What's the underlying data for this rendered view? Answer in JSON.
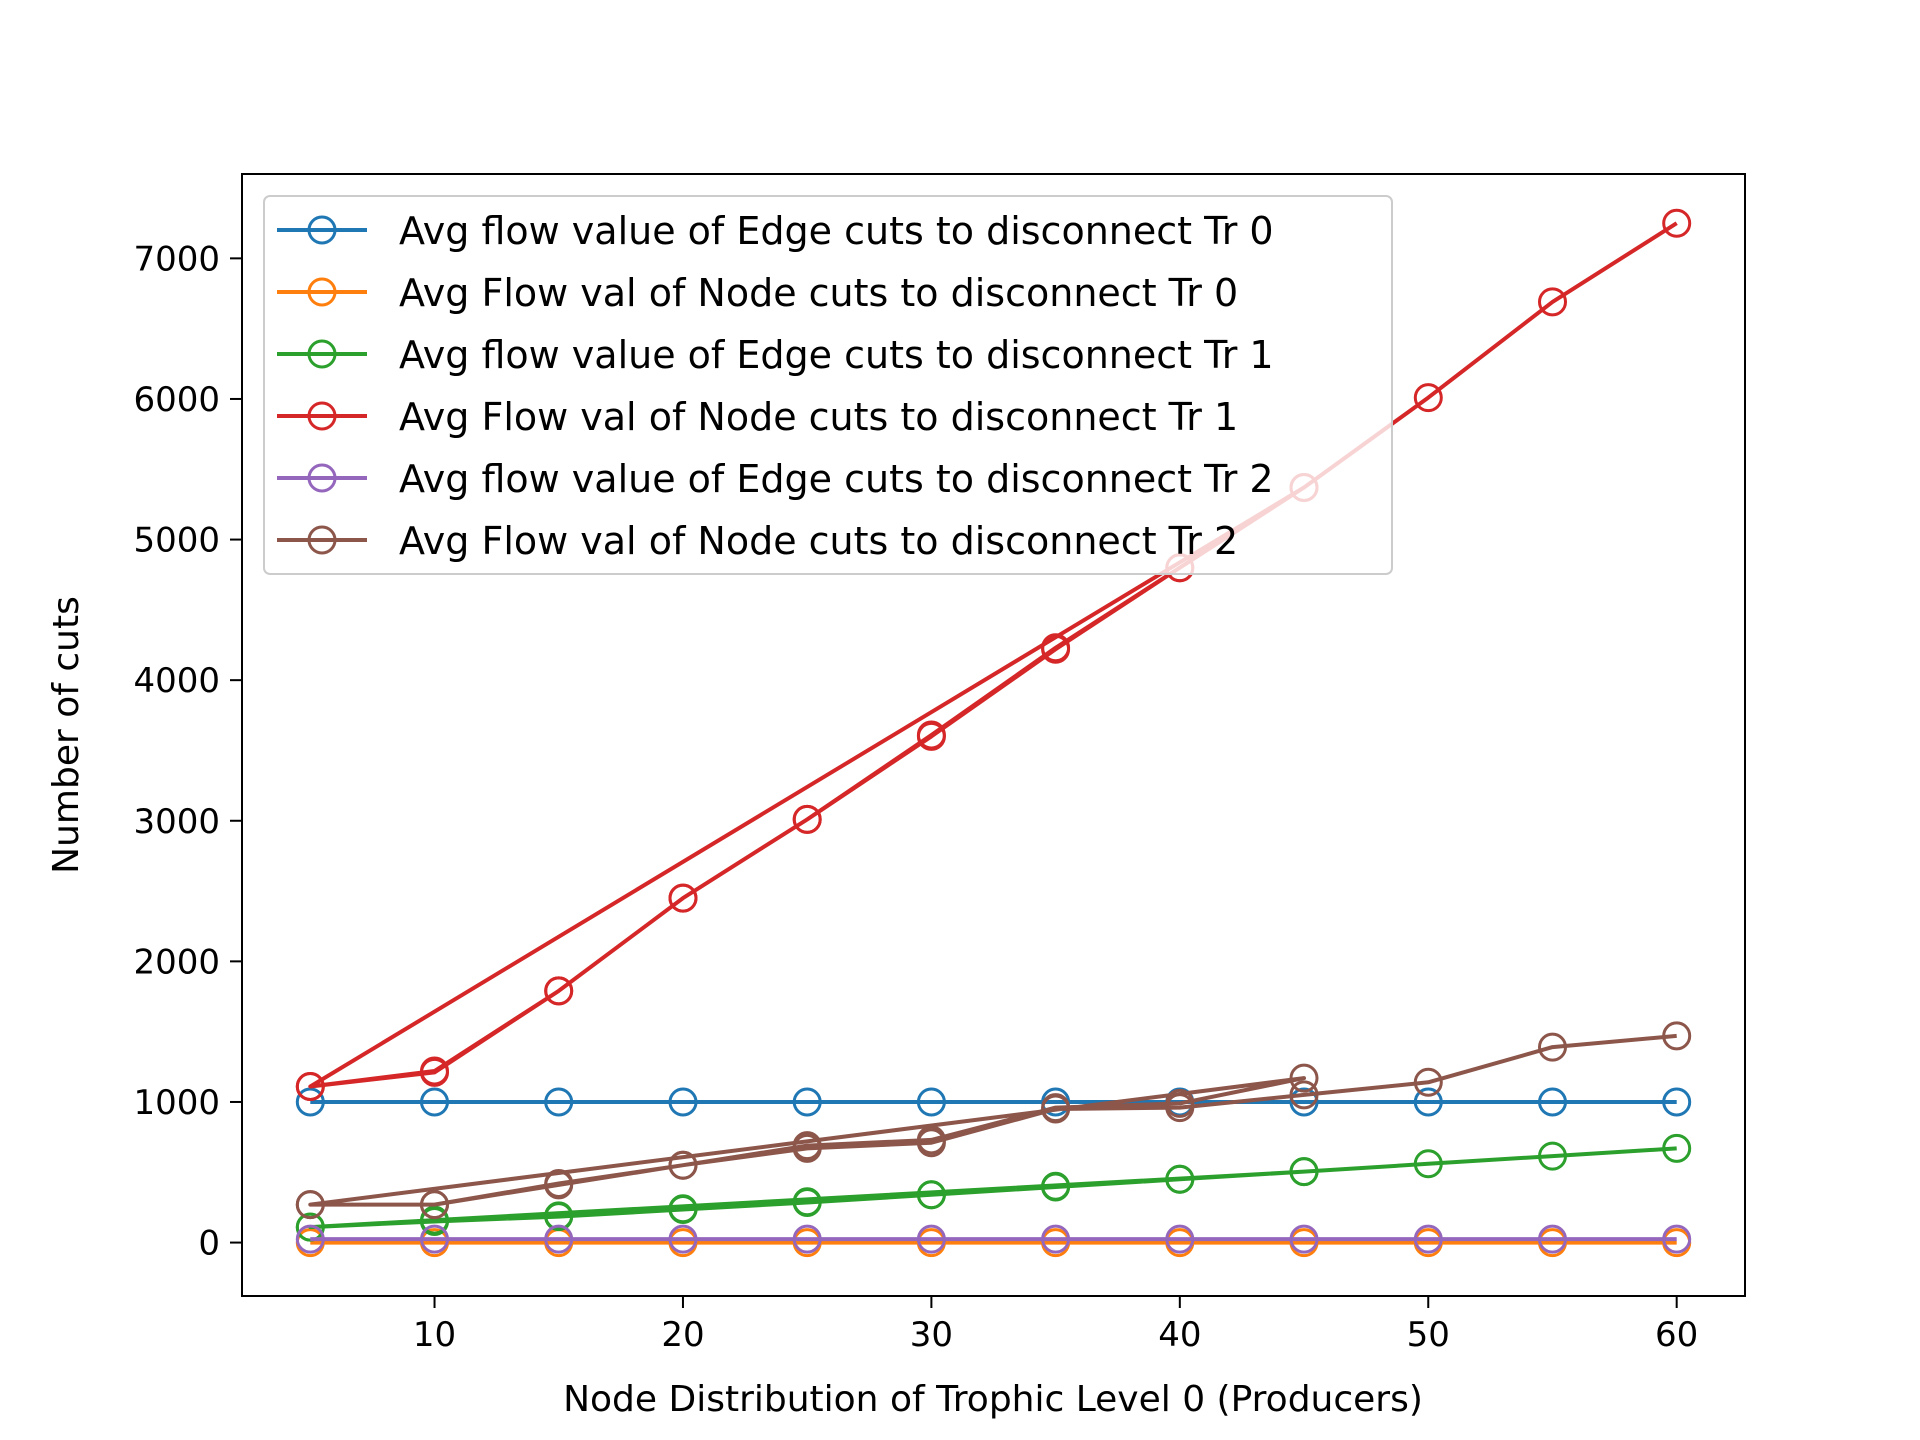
{
  "chart_data": {
    "type": "line",
    "title": "",
    "xlabel": "Node Distribution of Trophic Level 0 (Producers)",
    "ylabel": "Number of cuts",
    "xlim": [
      2.25,
      62.75
    ],
    "ylim": [
      -380,
      7600
    ],
    "xticks": [
      10,
      20,
      30,
      40,
      50,
      60
    ],
    "yticks": [
      0,
      1000,
      2000,
      3000,
      4000,
      5000,
      6000,
      7000
    ],
    "grid": false,
    "legend_position": "top-left",
    "series": [
      {
        "name": "Avg flow value of Edge cuts to disconnect Tr 0",
        "color": "#1f77b4",
        "points": [
          [
            5,
            1000
          ],
          [
            10,
            1000
          ],
          [
            15,
            1000
          ],
          [
            20,
            1000
          ],
          [
            25,
            1000
          ],
          [
            30,
            1000
          ],
          [
            35,
            1000
          ],
          [
            40,
            1000
          ],
          [
            45,
            1000
          ],
          [
            50,
            1000
          ],
          [
            55,
            1000
          ],
          [
            60,
            1000
          ]
        ]
      },
      {
        "name": "Avg Flow val of Node cuts to disconnect Tr 0",
        "color": "#ff7f0e",
        "points": [
          [
            5,
            0
          ],
          [
            10,
            0
          ],
          [
            15,
            0
          ],
          [
            20,
            0
          ],
          [
            25,
            0
          ],
          [
            30,
            0
          ],
          [
            35,
            0
          ],
          [
            40,
            0
          ],
          [
            45,
            0
          ],
          [
            50,
            0
          ],
          [
            55,
            0
          ],
          [
            60,
            0
          ]
        ]
      },
      {
        "name": "Avg flow value of Edge cuts to disconnect Tr 1",
        "color": "#2ca02c",
        "points": [
          [
            5,
            110
          ],
          [
            10,
            160
          ],
          [
            15,
            190
          ],
          [
            20,
            240
          ],
          [
            25,
            290
          ],
          [
            30,
            340
          ],
          [
            35,
            400
          ],
          [
            40,
            450
          ],
          [
            45,
            505
          ],
          [
            5,
            110
          ],
          [
            10,
            150
          ],
          [
            15,
            185
          ],
          [
            20,
            235
          ],
          [
            25,
            285
          ],
          [
            30,
            340
          ],
          [
            35,
            395
          ],
          [
            40,
            450
          ],
          [
            45,
            505
          ],
          [
            50,
            560
          ],
          [
            55,
            615
          ],
          [
            60,
            670
          ]
        ]
      },
      {
        "name": "Avg Flow val of Node cuts to disconnect Tr 1",
        "color": "#d62728",
        "points": [
          [
            5,
            1110
          ],
          [
            10,
            1220
          ],
          [
            15,
            1790
          ],
          [
            20,
            2450
          ],
          [
            25,
            3010
          ],
          [
            30,
            3610
          ],
          [
            35,
            4230
          ],
          [
            40,
            4800
          ],
          [
            45,
            5370
          ],
          [
            5,
            1110
          ],
          [
            10,
            1210
          ],
          [
            15,
            1790
          ],
          [
            20,
            2450
          ],
          [
            25,
            3010
          ],
          [
            30,
            3600
          ],
          [
            35,
            4220
          ],
          [
            40,
            4800
          ],
          [
            45,
            5370
          ],
          [
            50,
            6010
          ],
          [
            55,
            6690
          ],
          [
            60,
            7250
          ]
        ]
      },
      {
        "name": "Avg flow value of Edge cuts to disconnect Tr 2",
        "color": "#9467bd",
        "points": [
          [
            5,
            25
          ],
          [
            10,
            25
          ],
          [
            15,
            25
          ],
          [
            20,
            25
          ],
          [
            25,
            25
          ],
          [
            30,
            25
          ],
          [
            35,
            25
          ],
          [
            40,
            25
          ],
          [
            45,
            25
          ],
          [
            50,
            25
          ],
          [
            55,
            25
          ],
          [
            60,
            25
          ]
        ]
      },
      {
        "name": "Avg Flow val of Node cuts to disconnect Tr 2",
        "color": "#8c564b",
        "points": [
          [
            5,
            270
          ],
          [
            10,
            270
          ],
          [
            15,
            420
          ],
          [
            20,
            550
          ],
          [
            25,
            690
          ],
          [
            30,
            730
          ],
          [
            35,
            960
          ],
          [
            40,
            990
          ],
          [
            45,
            1170
          ],
          [
            5,
            270
          ],
          [
            10,
            270
          ],
          [
            15,
            410
          ],
          [
            20,
            550
          ],
          [
            25,
            670
          ],
          [
            30,
            710
          ],
          [
            35,
            950
          ],
          [
            40,
            960
          ],
          [
            45,
            1050
          ],
          [
            50,
            1140
          ],
          [
            55,
            1390
          ],
          [
            60,
            1470
          ]
        ]
      }
    ]
  }
}
